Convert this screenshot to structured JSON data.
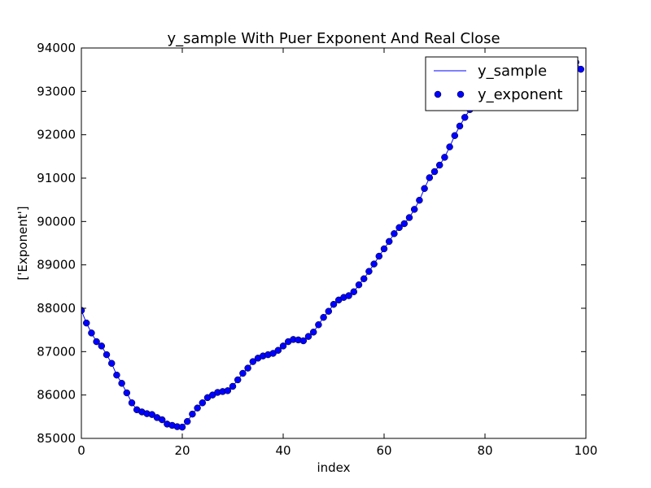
{
  "chart_data": {
    "type": "line",
    "title": "y_sample With Puer Exponent And Real Close",
    "xlabel": "index",
    "ylabel": "['Exponent']",
    "xlim": [
      0,
      100
    ],
    "ylim": [
      85000,
      94000
    ],
    "xticks": [
      0,
      20,
      40,
      60,
      80,
      100
    ],
    "yticks": [
      85000,
      86000,
      87000,
      88000,
      89000,
      90000,
      91000,
      92000,
      93000,
      94000
    ],
    "grid": false,
    "legend_position": "top-right",
    "series": [
      {
        "name": "y_sample",
        "style": "line",
        "color": "#0000ff",
        "x": [
          0,
          1,
          2,
          3,
          4,
          5,
          6,
          7,
          8,
          9,
          10,
          11,
          12,
          13,
          14,
          15,
          16,
          17,
          18,
          19,
          20,
          21,
          22,
          23,
          24,
          25,
          26,
          27,
          28,
          29,
          30,
          31,
          32,
          33,
          34,
          35,
          36,
          37,
          38,
          39,
          40,
          41,
          42,
          43,
          44,
          45,
          46,
          47,
          48,
          49,
          50,
          51,
          52,
          53,
          54,
          55,
          56,
          57,
          58,
          59,
          60,
          61,
          62,
          63,
          64,
          65,
          66,
          67,
          68,
          69,
          70,
          71,
          72,
          73,
          74,
          75,
          76,
          77,
          78,
          79,
          80,
          81,
          82,
          83,
          84,
          85,
          86,
          87,
          88,
          89,
          90,
          91,
          92,
          93,
          94,
          95,
          96,
          97,
          98,
          99
        ],
        "values": [
          87950,
          87660,
          87430,
          87230,
          87130,
          86930,
          86730,
          86460,
          86270,
          86050,
          85820,
          85660,
          85610,
          85570,
          85550,
          85480,
          85430,
          85330,
          85300,
          85270,
          85260,
          85390,
          85560,
          85700,
          85820,
          85940,
          86000,
          86060,
          86080,
          86100,
          86200,
          86350,
          86500,
          86620,
          86770,
          86850,
          86900,
          86930,
          86960,
          87030,
          87130,
          87230,
          87280,
          87270,
          87250,
          87350,
          87450,
          87620,
          87790,
          87930,
          88090,
          88190,
          88250,
          88290,
          88380,
          88540,
          88680,
          88850,
          89020,
          89200,
          89370,
          89540,
          89720,
          89860,
          89950,
          90090,
          90280,
          90490,
          90760,
          91010,
          91150,
          91300,
          91480,
          91720,
          91980,
          92200,
          92400,
          92580,
          92720,
          92880,
          93010,
          93120,
          93200,
          93270,
          93320,
          93360,
          93390,
          93410,
          93430,
          93440,
          93450,
          93470,
          93490,
          93500,
          93520,
          93530,
          93560,
          93600,
          93670,
          93510
        ]
      },
      {
        "name": "y_exponent",
        "style": "marker",
        "color": "#0000ff",
        "x": [
          0,
          1,
          2,
          3,
          4,
          5,
          6,
          7,
          8,
          9,
          10,
          11,
          12,
          13,
          14,
          15,
          16,
          17,
          18,
          19,
          20,
          21,
          22,
          23,
          24,
          25,
          26,
          27,
          28,
          29,
          30,
          31,
          32,
          33,
          34,
          35,
          36,
          37,
          38,
          39,
          40,
          41,
          42,
          43,
          44,
          45,
          46,
          47,
          48,
          49,
          50,
          51,
          52,
          53,
          54,
          55,
          56,
          57,
          58,
          59,
          60,
          61,
          62,
          63,
          64,
          65,
          66,
          67,
          68,
          69,
          70,
          71,
          72,
          73,
          74,
          75,
          76,
          77,
          78,
          79,
          80,
          81,
          82,
          83,
          84,
          85,
          86,
          87,
          88,
          89,
          90,
          91,
          92,
          93,
          94,
          95,
          96,
          97,
          98,
          99
        ],
        "values": [
          87950,
          87660,
          87430,
          87230,
          87130,
          86930,
          86730,
          86460,
          86270,
          86050,
          85820,
          85660,
          85610,
          85570,
          85550,
          85480,
          85430,
          85330,
          85300,
          85270,
          85260,
          85390,
          85560,
          85700,
          85820,
          85940,
          86000,
          86060,
          86080,
          86100,
          86200,
          86350,
          86500,
          86620,
          86770,
          86850,
          86900,
          86930,
          86960,
          87030,
          87130,
          87230,
          87280,
          87270,
          87250,
          87350,
          87450,
          87620,
          87790,
          87930,
          88090,
          88190,
          88250,
          88290,
          88380,
          88540,
          88680,
          88850,
          89020,
          89200,
          89370,
          89540,
          89720,
          89860,
          89950,
          90090,
          90280,
          90490,
          90760,
          91010,
          91150,
          91300,
          91480,
          91720,
          91980,
          92200,
          92400,
          92580,
          92720,
          92880,
          93010,
          93120,
          93200,
          93270,
          93320,
          93360,
          93390,
          93410,
          93430,
          93440,
          93450,
          93470,
          93490,
          93500,
          93520,
          93530,
          93560,
          93600,
          93670,
          93510
        ]
      }
    ]
  }
}
